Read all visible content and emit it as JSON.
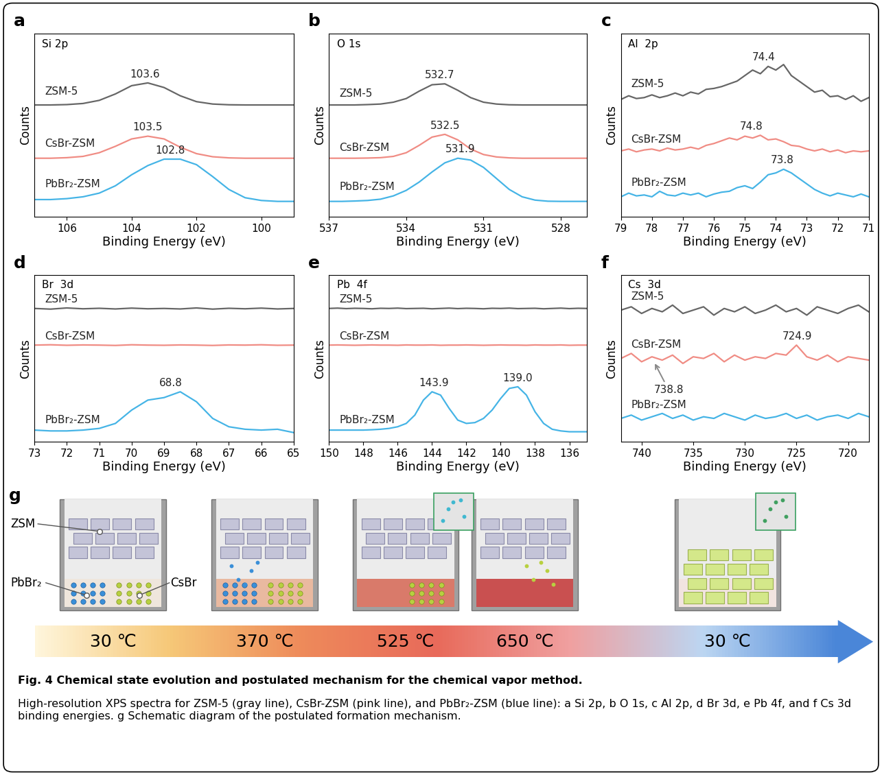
{
  "chart_data": [
    {
      "type": "line",
      "panel": "a",
      "title": "Si 2p",
      "x_label": "Binding Energy (eV)",
      "y_label": "Counts",
      "x": [
        107,
        106.5,
        106,
        105.5,
        105,
        104.5,
        104,
        103.5,
        103,
        102.5,
        102,
        101.5,
        101,
        100.5,
        100,
        99.5,
        99
      ],
      "xlim": [
        107,
        99
      ],
      "xticks": [
        106,
        104,
        102,
        100
      ],
      "ylim": [
        0,
        100
      ],
      "tick_labels": "x",
      "series": [
        {
          "name": "ZSM-5",
          "color": "#666666",
          "peaks": [
            103.6
          ],
          "values": [
            61,
            61,
            61.2,
            61.8,
            63.5,
            67,
            71.5,
            73,
            70.5,
            66,
            62.8,
            61.5,
            61.1,
            61,
            61,
            61,
            61
          ]
        },
        {
          "name": "CsBr-ZSM",
          "color": "#f08c84",
          "peaks": [
            103.5
          ],
          "values": [
            32,
            32,
            32.3,
            33,
            35,
            38.5,
            42.5,
            44,
            42.5,
            38,
            34.5,
            32.8,
            32.2,
            32,
            32,
            32,
            32
          ]
        },
        {
          "name": "PbBr₂-ZSM",
          "color": "#45b4e6",
          "peaks": [
            102.8
          ],
          "values": [
            9.5,
            9.5,
            10,
            11,
            13,
            17,
            23,
            28,
            31.5,
            31.5,
            28.5,
            22,
            15,
            10.5,
            9,
            8.5,
            8.5
          ]
        }
      ]
    },
    {
      "type": "line",
      "panel": "b",
      "title": "O 1s",
      "x_label": "Binding Energy (eV)",
      "y_label": "Counts",
      "x": [
        537,
        536.5,
        536,
        535.5,
        535,
        534.5,
        534,
        533.5,
        533,
        532.5,
        532,
        531.5,
        531,
        530.5,
        530,
        529.5,
        529,
        528.5,
        528,
        527.5,
        527
      ],
      "xlim": [
        537,
        527
      ],
      "xticks": [
        537,
        534,
        531,
        528
      ],
      "ylim": [
        0,
        100
      ],
      "tick_labels": "x",
      "series": [
        {
          "name": "ZSM-5",
          "color": "#666666",
          "peaks": [
            532.7
          ],
          "values": [
            61,
            61,
            61,
            61.2,
            61.5,
            62.5,
            64.5,
            68.5,
            72,
            72.5,
            69,
            65,
            62.5,
            61.5,
            61.1,
            61,
            61,
            61,
            61,
            61,
            61
          ]
        },
        {
          "name": "CsBr-ZSM",
          "color": "#f08c84",
          "peaks": [
            532.5
          ],
          "values": [
            32,
            32,
            32,
            32.1,
            32.3,
            33,
            35,
            39,
            43.5,
            45,
            42,
            37,
            34,
            32.7,
            32.2,
            32,
            32,
            32,
            32,
            32,
            32
          ]
        },
        {
          "name": "PbBr₂-ZSM",
          "color": "#45b4e6",
          "peaks": [
            531.9
          ],
          "values": [
            8.5,
            8.5,
            8.7,
            9,
            9.7,
            11.5,
            14.5,
            19,
            24.5,
            29.5,
            32,
            31,
            27,
            21,
            15,
            11,
            9.2,
            8.6,
            8.5,
            8.5,
            8.5
          ]
        }
      ]
    },
    {
      "type": "line",
      "panel": "c",
      "title": "Al  2p",
      "x_label": "Binding Energy (eV)",
      "y_label": "Counts",
      "x": [
        79,
        78.75,
        78.5,
        78.25,
        78,
        77.75,
        77.5,
        77.25,
        77,
        76.75,
        76.5,
        76.25,
        76,
        75.75,
        75.5,
        75.25,
        75,
        74.75,
        74.5,
        74.25,
        74,
        73.75,
        73.5,
        73.25,
        73,
        72.75,
        72.5,
        72.25,
        72,
        71.75,
        71.5,
        71.25,
        71
      ],
      "xlim": [
        79,
        71
      ],
      "xticks": [
        79,
        78,
        77,
        76,
        75,
        74,
        73,
        72,
        71
      ],
      "ylim": [
        0,
        100
      ],
      "tick_labels": "x",
      "series": [
        {
          "name": "ZSM-5",
          "color": "#666666",
          "peaks": [
            74.4
          ],
          "values": [
            64,
            66,
            64.5,
            65,
            66.5,
            65,
            66,
            67.5,
            66,
            68,
            67,
            69.5,
            70,
            71,
            72.5,
            74,
            77,
            80,
            78,
            82,
            80,
            83,
            77,
            74,
            71,
            68,
            69,
            65.5,
            66,
            64,
            66,
            63,
            65
          ]
        },
        {
          "name": "CsBr-ZSM",
          "color": "#f08c84",
          "peaks": [
            74.8
          ],
          "values": [
            36,
            37,
            35.5,
            36.5,
            37,
            36,
            37.5,
            36.5,
            37,
            38,
            37,
            39,
            40,
            41.5,
            43,
            42,
            44,
            43,
            44.5,
            42,
            42.5,
            41,
            39,
            38.5,
            37,
            36,
            37,
            35.5,
            36.5,
            35,
            36,
            35.5,
            36
          ]
        },
        {
          "name": "PbBr₂-ZSM",
          "color": "#45b4e6",
          "peaks": [
            73.8
          ],
          "values": [
            11,
            13,
            11.5,
            12,
            11,
            14,
            12,
            11.5,
            13,
            12,
            13,
            11,
            12.5,
            13.5,
            14,
            16,
            17,
            15.5,
            19,
            23,
            24,
            26,
            24,
            21,
            18,
            15,
            13,
            11.5,
            13,
            12,
            11,
            12.5,
            11
          ]
        }
      ]
    },
    {
      "type": "line",
      "panel": "d",
      "title": "Br  3d",
      "x_label": "Binding Energy (eV)",
      "y_label": "Counts",
      "x": [
        73,
        72.5,
        72,
        71.5,
        71,
        70.5,
        70,
        69.5,
        69,
        68.5,
        68,
        67.5,
        67,
        66.5,
        66,
        65.5,
        65
      ],
      "xlim": [
        73,
        65
      ],
      "xticks": [
        73,
        72,
        71,
        70,
        69,
        68,
        67,
        66,
        65
      ],
      "ylim": [
        0,
        100
      ],
      "tick_labels": "x",
      "series": [
        {
          "name": "ZSM-5",
          "color": "#666666",
          "values": [
            80,
            79.6,
            80.3,
            79.8,
            80.1,
            79.7,
            80.2,
            79.8,
            80,
            79.7,
            80.3,
            79.6,
            80.1,
            79.8,
            80.2,
            79.7,
            80
          ]
        },
        {
          "name": "CsBr-ZSM",
          "color": "#f08c84",
          "values": [
            58,
            58.2,
            57.9,
            58.1,
            58,
            57.8,
            58.2,
            58,
            57.9,
            58.1,
            58,
            57.8,
            58.1,
            58,
            58.2,
            57.9,
            58
          ]
        },
        {
          "name": "PbBr₂-ZSM",
          "color": "#45b4e6",
          "peaks": [
            68.8
          ],
          "values": [
            7,
            6.5,
            6.5,
            7,
            8,
            11,
            19,
            25,
            26.5,
            30,
            24,
            14,
            9,
            7.5,
            7,
            7.5,
            5.5
          ]
        }
      ]
    },
    {
      "type": "line",
      "panel": "e",
      "title": "Pb  4f",
      "x_label": "Binding Energy (eV)",
      "y_label": "Counts",
      "x": [
        150,
        149.5,
        149,
        148.5,
        148,
        147.5,
        147,
        146.5,
        146,
        145.5,
        145,
        144.5,
        144,
        143.5,
        143,
        142.5,
        142,
        141.5,
        141,
        140.5,
        140,
        139.5,
        139,
        138.5,
        138,
        137.5,
        137,
        136.5,
        136,
        135.5,
        135
      ],
      "xlim": [
        150,
        135
      ],
      "xticks": [
        150,
        148,
        146,
        144,
        142,
        140,
        138,
        136
      ],
      "ylim": [
        0,
        100
      ],
      "tick_labels": "x",
      "series": [
        {
          "name": "ZSM-5",
          "color": "#666666",
          "values": [
            80,
            80.2,
            79.9,
            80.1,
            80,
            79.8,
            80.1,
            80,
            80.2,
            79.9,
            80,
            80.1,
            79.8,
            80,
            80.2,
            79.9,
            80.1,
            80,
            79.8,
            80.1,
            80,
            80.2,
            79.9,
            80,
            80.1,
            79.8,
            80,
            80.2,
            79.9,
            80.1,
            80
          ]
        },
        {
          "name": "CsBr-ZSM",
          "color": "#f08c84",
          "values": [
            58,
            58.1,
            58,
            57.9,
            58,
            58.1,
            58,
            58,
            57.9,
            58.1,
            58,
            58,
            58.1,
            57.9,
            58,
            58,
            58.1,
            58,
            57.9,
            58,
            58.1,
            58,
            58,
            57.9,
            58.1,
            58,
            58,
            58.1,
            57.9,
            58,
            58
          ]
        },
        {
          "name": "PbBr₂-ZSM",
          "color": "#45b4e6",
          "peaks": [
            143.9,
            139.0
          ],
          "values": [
            7,
            7,
            7,
            7,
            7,
            7.2,
            7.5,
            8,
            9,
            11,
            16,
            25,
            30,
            28,
            20,
            13,
            11,
            11.5,
            14,
            19,
            26,
            32,
            33,
            28,
            18,
            11,
            7.5,
            6.5,
            6,
            6,
            6
          ]
        }
      ]
    },
    {
      "type": "line",
      "panel": "f",
      "title": "Cs  3d",
      "x_label": "Binding Energy (eV)",
      "y_label": "Counts",
      "x": [
        742,
        741,
        740,
        739,
        738,
        737,
        736,
        735,
        734,
        733,
        732,
        731,
        730,
        729,
        728,
        727,
        726,
        725,
        724,
        723,
        722,
        721,
        720,
        719,
        718
      ],
      "xlim": [
        742,
        718
      ],
      "xticks": [
        740,
        735,
        730,
        725,
        720
      ],
      "ylim": [
        0,
        100
      ],
      "tick_labels": "x",
      "series": [
        {
          "name": "ZSM-5",
          "color": "#666666",
          "values": [
            79,
            81,
            77,
            80,
            78,
            82,
            77,
            79,
            81,
            76,
            80,
            78,
            81,
            77,
            79,
            82,
            78,
            80,
            76,
            81,
            79,
            77,
            80,
            82,
            78
          ]
        },
        {
          "name": "CsBr-ZSM",
          "color": "#f08c84",
          "peaks": [
            724.9
          ],
          "arrow_peaks": [
            738.8
          ],
          "values": [
            50,
            53,
            48,
            51,
            49,
            52,
            47,
            51,
            50,
            53,
            48,
            52,
            49,
            51,
            50,
            53,
            52,
            58,
            51,
            49,
            52,
            48,
            51,
            50,
            49
          ]
        },
        {
          "name": "PbBr₂-ZSM",
          "color": "#45b4e6",
          "values": [
            14,
            16,
            13,
            15,
            17,
            14,
            16,
            13,
            15,
            14,
            17,
            15,
            13,
            16,
            14,
            15,
            17,
            14,
            16,
            13,
            15,
            16,
            14,
            17,
            15
          ]
        }
      ]
    }
  ],
  "schematic": {
    "panel": "g",
    "inputs": [
      "ZSM",
      "PbBr₂",
      "CsBr"
    ],
    "stages": [
      "30 ℃",
      "370 ℃",
      "525 ℃",
      "650 ℃",
      "30 ℃"
    ]
  },
  "caption": {
    "title": "Fig. 4 Chemical state evolution and postulated mechanism for the chemical vapor method.",
    "text": "High-resolution XPS spectra for ZSM-5 (gray line), CsBr-ZSM (pink line), and PbBr₂-ZSM (blue line): a Si 2p, b O 1s, c Al 2p, d Br 3d, e Pb 4f, and f Cs 3d binding energies. g Schematic diagram of the postulated formation mechanism."
  }
}
